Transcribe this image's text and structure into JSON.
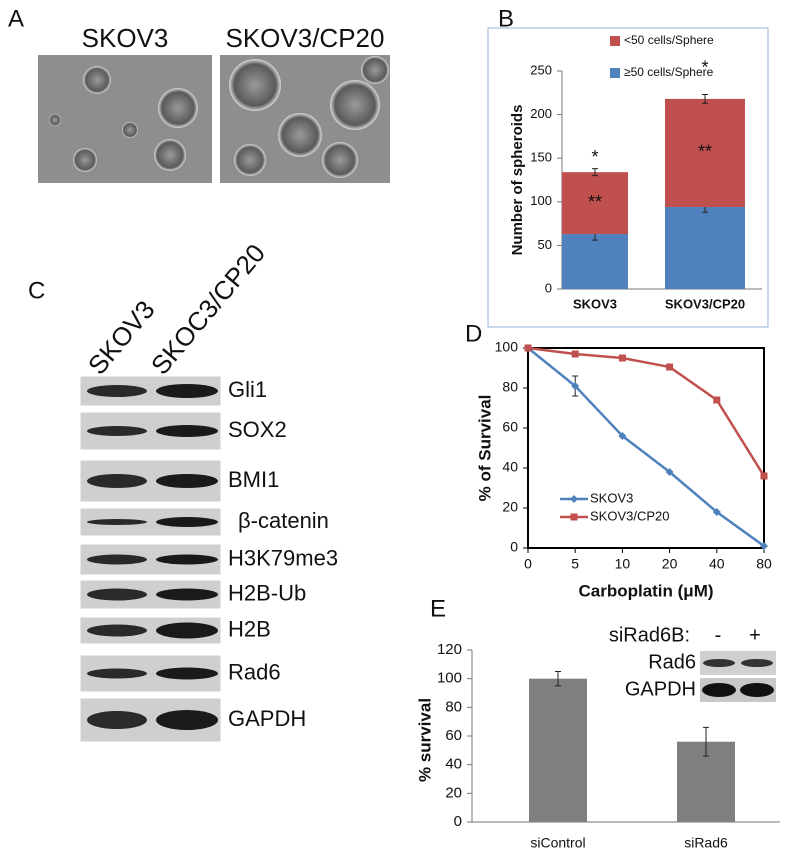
{
  "panel_a": {
    "panel": "A",
    "captions": [
      "SKOV3",
      "SKOV3/CP20"
    ]
  },
  "blots": {
    "panel": "C",
    "lanes": [
      "SKOV3",
      "SKOC3/CP20"
    ],
    "rows": [
      "Gli1",
      "SOX2",
      "BMI1",
      "β-catenin",
      "H3K79me3",
      "H2B-Ub",
      "H2B",
      "Rad6",
      "GAPDH"
    ]
  },
  "chart_data": [
    {
      "type": "stacked_bar",
      "panel": "B",
      "ylabel": "Number of spheroids",
      "categories": [
        "SKOV3",
        "SKOV3/CP20"
      ],
      "series": [
        {
          "name": "≥50 cells/Sphere",
          "color": "#4f81bd",
          "values": [
            63,
            94
          ],
          "errors": [
            7,
            6
          ]
        },
        {
          "name": "<50 cells/Sphere",
          "color": "#c0504d",
          "values": [
            71,
            124
          ],
          "errors": [
            4,
            5
          ]
        }
      ],
      "annotations": [
        "*",
        "**"
      ],
      "ylim": [
        0,
        250
      ],
      "yticks": [
        0,
        50,
        100,
        150,
        200,
        250
      ]
    },
    {
      "type": "line",
      "panel": "D",
      "xlabel": "Carboplatin (μM)",
      "ylabel": "% of Survival",
      "categories": [
        "0",
        "5",
        "10",
        "20",
        "40",
        "80"
      ],
      "series": [
        {
          "name": "SKOV3",
          "color": "#4f81bd",
          "values": [
            100,
            81,
            56,
            38,
            18,
            1
          ],
          "errors": [
            null,
            5,
            null,
            null,
            null,
            null
          ]
        },
        {
          "name": "SKOV3/CP20",
          "color": "#c0504d",
          "values": [
            100,
            97,
            95,
            90.5,
            74,
            36
          ]
        }
      ],
      "ylim": [
        0,
        100
      ],
      "yticks": [
        0,
        20,
        40,
        60,
        80,
        100
      ],
      "legend": "lower left"
    },
    {
      "type": "bar",
      "panel": "E",
      "ylabel": "% survival",
      "categories": [
        "siControl",
        "siRad6"
      ],
      "values": [
        100,
        56
      ],
      "errors": [
        5,
        10
      ],
      "color": "#7f7f7f",
      "ylim": [
        0,
        120
      ],
      "yticks": [
        0,
        20,
        40,
        60,
        80,
        100,
        120
      ]
    }
  ],
  "inset": {
    "header": "siRad6B:",
    "lanes": [
      "-",
      "+"
    ],
    "rows": [
      "Rad6",
      "GAPDH"
    ]
  }
}
